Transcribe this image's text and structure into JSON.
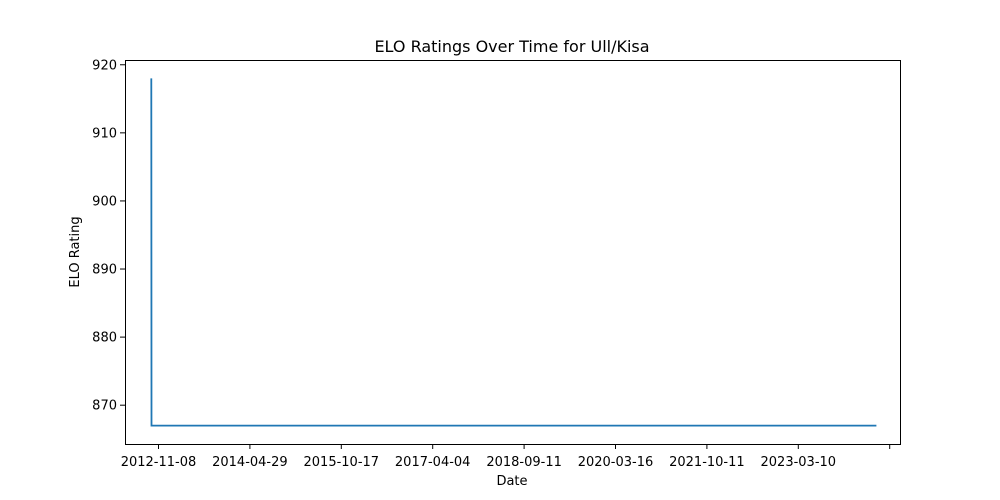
{
  "chart_data": {
    "type": "line",
    "title": "ELO Ratings Over Time for Ull/Kisa",
    "xlabel": "Date",
    "ylabel": "ELO Rating",
    "x_axis_type": "date",
    "x_ticks": [
      "2012-11-08",
      "2014-04-29",
      "2015-10-17",
      "2017-04-04",
      "2018-09-11",
      "2020-03-16",
      "2021-10-11",
      "2023-03-10",
      ""
    ],
    "y_ticks": [
      870,
      880,
      890,
      900,
      910,
      920
    ],
    "ylim": [
      864.3,
      920.7
    ],
    "xlim": [
      "2012-06-04",
      "2025-01-29"
    ],
    "grid": false,
    "color": "#1f77b4",
    "series": [
      {
        "x": [
          "2012-11-08",
          "2012-11-09",
          "2024-09-10"
        ],
        "y": [
          918,
          867,
          867
        ]
      }
    ]
  }
}
